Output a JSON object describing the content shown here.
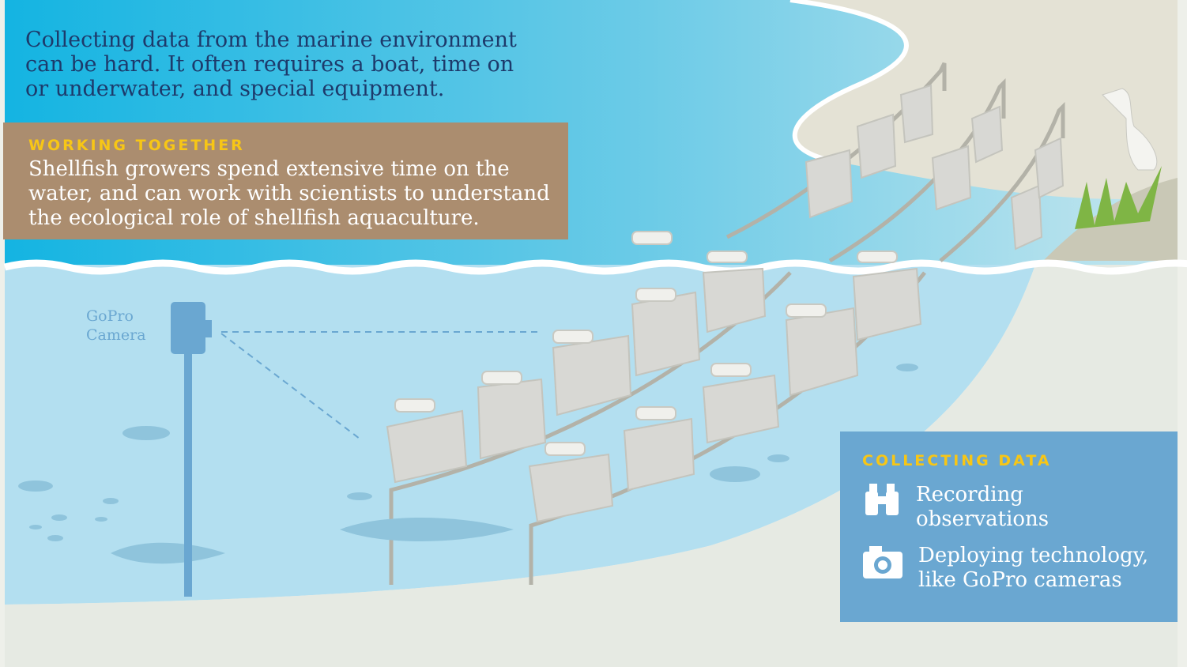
{
  "intro": [
    "Collecting data from the marine environment",
    "can be hard. It often requires a boat, time on",
    "or underwater, and special equipment."
  ],
  "working_together": {
    "heading": "WORKING TOGETHER",
    "lines": [
      "Shellfish growers spend extensive time on the",
      "water, and can work with scientists to understand",
      "the ecological role of shellfish aquaculture."
    ]
  },
  "camera_label": [
    "GoPro",
    "Camera"
  ],
  "collecting_data": {
    "heading": "COLLECTING DATA",
    "items": [
      {
        "lines": [
          "Recording",
          "observations"
        ]
      },
      {
        "lines": [
          "Deploying technology,",
          "like GoPro cameras"
        ]
      }
    ]
  }
}
